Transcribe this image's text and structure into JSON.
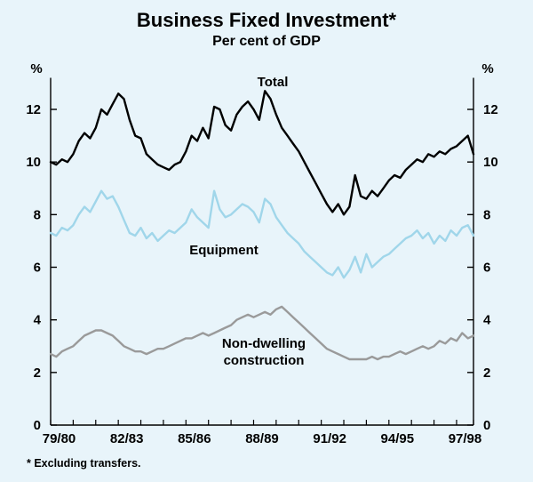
{
  "title": "Business Fixed Investment*",
  "subtitle": "Per cent of GDP",
  "footnote": "* Excluding transfers.",
  "annotations": {
    "total": "Total",
    "equipment": "Equipment",
    "non_dwelling_line1": "Non-dwelling",
    "non_dwelling_line2": "construction"
  },
  "axes": {
    "y_unit": "%"
  },
  "colors": {
    "background": "#e8f4fa",
    "axis": "#000000",
    "total_line": "#000000",
    "equipment_line": "#a0d6ea",
    "non_dwelling_line": "#9a9a9a"
  },
  "chart_data": {
    "type": "line",
    "title": "Business Fixed Investment*",
    "subtitle": "Per cent of GDP",
    "footnote": "* Excluding transfers.",
    "x_axis": {
      "labels": [
        "79/80",
        "82/83",
        "85/86",
        "88/89",
        "91/92",
        "94/95",
        "97/98"
      ],
      "start_label": "79/80",
      "end_label": "97/98",
      "points_per_year": 4
    },
    "y_axis": {
      "unit": "%",
      "min": 0,
      "max": 13,
      "ticks": [
        0,
        2,
        4,
        6,
        8,
        10,
        12
      ],
      "both_sides": true,
      "grid": false
    },
    "legend": "inline-annotations",
    "series": [
      {
        "name": "Total",
        "color": "#000000",
        "values": [
          10.0,
          9.9,
          10.1,
          10.0,
          10.3,
          10.8,
          11.1,
          10.9,
          11.3,
          12.0,
          11.8,
          12.2,
          12.6,
          12.4,
          11.6,
          11.0,
          10.9,
          10.3,
          10.1,
          9.9,
          9.8,
          9.7,
          9.9,
          10.0,
          10.4,
          11.0,
          10.8,
          11.3,
          10.9,
          12.1,
          12.0,
          11.4,
          11.2,
          11.8,
          12.1,
          12.3,
          12.0,
          11.6,
          12.7,
          12.4,
          11.8,
          11.3,
          11.0,
          10.7,
          10.4,
          10.0,
          9.6,
          9.2,
          8.8,
          8.4,
          8.1,
          8.4,
          8.0,
          8.3,
          9.5,
          8.7,
          8.6,
          8.9,
          8.7,
          9.0,
          9.3,
          9.5,
          9.4,
          9.7,
          9.9,
          10.1,
          10.0,
          10.3,
          10.2,
          10.4,
          10.3,
          10.5,
          10.6,
          10.8,
          11.0,
          10.3
        ]
      },
      {
        "name": "Equipment",
        "color": "#a0d6ea",
        "values": [
          7.3,
          7.2,
          7.5,
          7.4,
          7.6,
          8.0,
          8.3,
          8.1,
          8.5,
          8.9,
          8.6,
          8.7,
          8.3,
          7.8,
          7.3,
          7.2,
          7.5,
          7.1,
          7.3,
          7.0,
          7.2,
          7.4,
          7.3,
          7.5,
          7.7,
          8.2,
          7.9,
          7.7,
          7.5,
          8.9,
          8.2,
          7.9,
          8.0,
          8.2,
          8.4,
          8.3,
          8.1,
          7.7,
          8.6,
          8.4,
          7.9,
          7.6,
          7.3,
          7.1,
          6.9,
          6.6,
          6.4,
          6.2,
          6.0,
          5.8,
          5.7,
          6.0,
          5.6,
          5.9,
          6.4,
          5.8,
          6.5,
          6.0,
          6.2,
          6.4,
          6.5,
          6.7,
          6.9,
          7.1,
          7.2,
          7.4,
          7.1,
          7.3,
          6.9,
          7.2,
          7.0,
          7.4,
          7.2,
          7.5,
          7.6,
          7.2
        ]
      },
      {
        "name": "Non-dwelling construction",
        "color": "#9a9a9a",
        "values": [
          2.7,
          2.6,
          2.8,
          2.9,
          3.0,
          3.2,
          3.4,
          3.5,
          3.6,
          3.6,
          3.5,
          3.4,
          3.2,
          3.0,
          2.9,
          2.8,
          2.8,
          2.7,
          2.8,
          2.9,
          2.9,
          3.0,
          3.1,
          3.2,
          3.3,
          3.3,
          3.4,
          3.5,
          3.4,
          3.5,
          3.6,
          3.7,
          3.8,
          4.0,
          4.1,
          4.2,
          4.1,
          4.2,
          4.3,
          4.2,
          4.4,
          4.5,
          4.3,
          4.1,
          3.9,
          3.7,
          3.5,
          3.3,
          3.1,
          2.9,
          2.8,
          2.7,
          2.6,
          2.5,
          2.5,
          2.5,
          2.5,
          2.6,
          2.5,
          2.6,
          2.6,
          2.7,
          2.8,
          2.7,
          2.8,
          2.9,
          3.0,
          2.9,
          3.0,
          3.2,
          3.1,
          3.3,
          3.2,
          3.5,
          3.3,
          3.4
        ]
      }
    ]
  }
}
